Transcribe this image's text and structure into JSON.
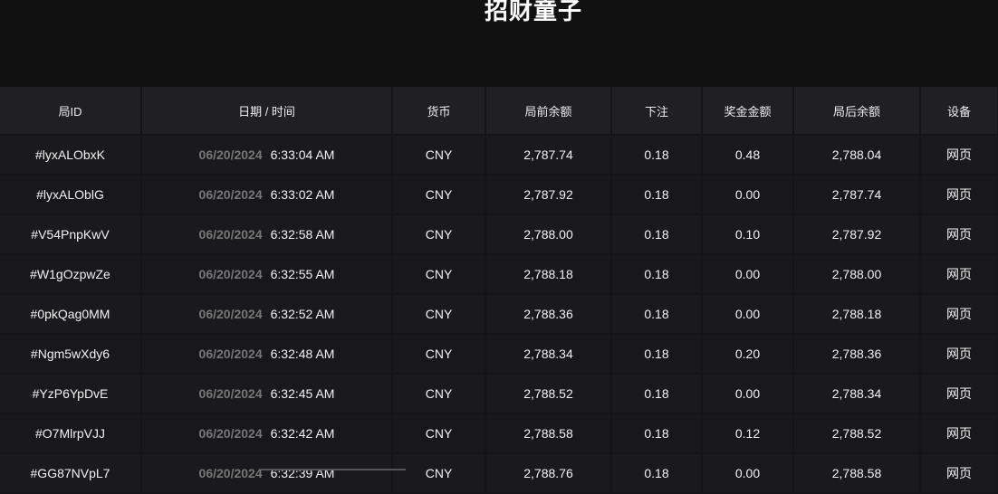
{
  "title": "招财童子",
  "columns": [
    "局ID",
    "日期 / 时间",
    "货币",
    "局前余额",
    "下注",
    "奖金金额",
    "局后余额",
    "设备"
  ],
  "rows": [
    {
      "id": "#lyxALObxK",
      "date": "06/20/2024",
      "time": "6:33:04 AM",
      "currency": "CNY",
      "before": "2,787.74",
      "bet": "0.18",
      "win": "0.48",
      "after": "2,788.04",
      "device": "网页"
    },
    {
      "id": "#lyxALOblG",
      "date": "06/20/2024",
      "time": "6:33:02 AM",
      "currency": "CNY",
      "before": "2,787.92",
      "bet": "0.18",
      "win": "0.00",
      "after": "2,787.74",
      "device": "网页"
    },
    {
      "id": "#V54PnpKwV",
      "date": "06/20/2024",
      "time": "6:32:58 AM",
      "currency": "CNY",
      "before": "2,788.00",
      "bet": "0.18",
      "win": "0.10",
      "after": "2,787.92",
      "device": "网页"
    },
    {
      "id": "#W1gOzpwZe",
      "date": "06/20/2024",
      "time": "6:32:55 AM",
      "currency": "CNY",
      "before": "2,788.18",
      "bet": "0.18",
      "win": "0.00",
      "after": "2,788.00",
      "device": "网页"
    },
    {
      "id": "#0pkQag0MM",
      "date": "06/20/2024",
      "time": "6:32:52 AM",
      "currency": "CNY",
      "before": "2,788.36",
      "bet": "0.18",
      "win": "0.00",
      "after": "2,788.18",
      "device": "网页"
    },
    {
      "id": "#Ngm5wXdy6",
      "date": "06/20/2024",
      "time": "6:32:48 AM",
      "currency": "CNY",
      "before": "2,788.34",
      "bet": "0.18",
      "win": "0.20",
      "after": "2,788.36",
      "device": "网页"
    },
    {
      "id": "#YzP6YpDvE",
      "date": "06/20/2024",
      "time": "6:32:45 AM",
      "currency": "CNY",
      "before": "2,788.52",
      "bet": "0.18",
      "win": "0.00",
      "after": "2,788.34",
      "device": "网页"
    },
    {
      "id": "#O7MlrpVJJ",
      "date": "06/20/2024",
      "time": "6:32:42 AM",
      "currency": "CNY",
      "before": "2,788.58",
      "bet": "0.18",
      "win": "0.12",
      "after": "2,788.52",
      "device": "网页"
    },
    {
      "id": "#GG87NVpL7",
      "date": "06/20/2024",
      "time": "6:32:39 AM",
      "currency": "CNY",
      "before": "2,788.76",
      "bet": "0.18",
      "win": "0.00",
      "after": "2,788.58",
      "device": "网页"
    }
  ]
}
